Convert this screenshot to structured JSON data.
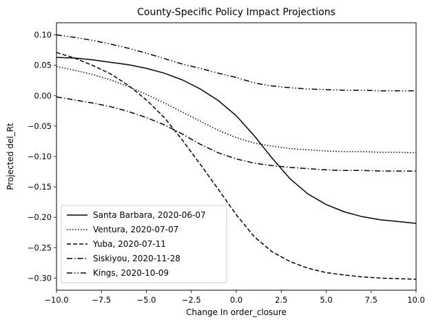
{
  "chart_data": {
    "type": "line",
    "title": "County-Specific Policy Impact Projections",
    "xlabel": "Change In order_closure",
    "ylabel": "Projected del_Rt",
    "xlim": [
      -10,
      10
    ],
    "ylim": [
      -0.32,
      0.12
    ],
    "xticks": [
      -10,
      -7.5,
      -5,
      -2.5,
      0,
      2.5,
      5,
      7.5,
      10
    ],
    "xtick_labels": [
      "−10.0",
      "−7.5",
      "−5.0",
      "−2.5",
      "0.0",
      "2.5",
      "5.0",
      "7.5",
      "10.0"
    ],
    "yticks": [
      0.1,
      0.05,
      0.0,
      -0.05,
      -0.1,
      -0.15,
      -0.2,
      -0.25,
      -0.3
    ],
    "ytick_labels": [
      "0.10",
      "0.05",
      "0.00",
      "−0.05",
      "−0.10",
      "−0.15",
      "−0.20",
      "−0.25",
      "−0.30"
    ],
    "grid": false,
    "legend_position": "lower-left",
    "x": [
      -10,
      -9,
      -8,
      -7,
      -6,
      -5,
      -4,
      -3,
      -2,
      -1,
      0,
      1,
      2,
      3,
      4,
      5,
      6,
      7,
      8,
      9,
      10
    ],
    "series": [
      {
        "name": "Santa Barbara, 2020-06-07",
        "style": "solid",
        "values": [
          0.063,
          0.062,
          0.059,
          0.055,
          0.051,
          0.045,
          0.037,
          0.026,
          0.011,
          -0.008,
          -0.033,
          -0.066,
          -0.103,
          -0.137,
          -0.162,
          -0.179,
          -0.191,
          -0.199,
          -0.204,
          -0.207,
          -0.21
        ]
      },
      {
        "name": "Ventura, 2020-07-07",
        "style": "dotted",
        "values": [
          0.048,
          0.042,
          0.035,
          0.026,
          0.015,
          0.002,
          -0.012,
          -0.027,
          -0.042,
          -0.057,
          -0.069,
          -0.078,
          -0.083,
          -0.087,
          -0.089,
          -0.091,
          -0.092,
          -0.092,
          -0.093,
          -0.093,
          -0.094
        ]
      },
      {
        "name": "Yuba, 2020-07-11",
        "style": "dashed",
        "values": [
          0.071,
          0.062,
          0.05,
          0.036,
          0.017,
          -0.007,
          -0.036,
          -0.073,
          -0.113,
          -0.154,
          -0.196,
          -0.232,
          -0.257,
          -0.273,
          -0.284,
          -0.291,
          -0.295,
          -0.298,
          -0.3,
          -0.301,
          -0.302
        ]
      },
      {
        "name": "Siskiyou, 2020-11-28",
        "style": "dashdot",
        "values": [
          -0.002,
          -0.007,
          -0.012,
          -0.018,
          -0.026,
          -0.036,
          -0.048,
          -0.063,
          -0.08,
          -0.094,
          -0.104,
          -0.111,
          -0.115,
          -0.118,
          -0.12,
          -0.122,
          -0.123,
          -0.123,
          -0.124,
          -0.124,
          -0.124
        ]
      },
      {
        "name": "Kings, 2020-10-09",
        "style": "dashdotdot",
        "values": [
          0.1,
          0.096,
          0.091,
          0.085,
          0.078,
          0.07,
          0.061,
          0.052,
          0.045,
          0.037,
          0.03,
          0.021,
          0.016,
          0.013,
          0.011,
          0.01,
          0.009,
          0.009,
          0.008,
          0.008,
          0.008
        ]
      }
    ]
  }
}
